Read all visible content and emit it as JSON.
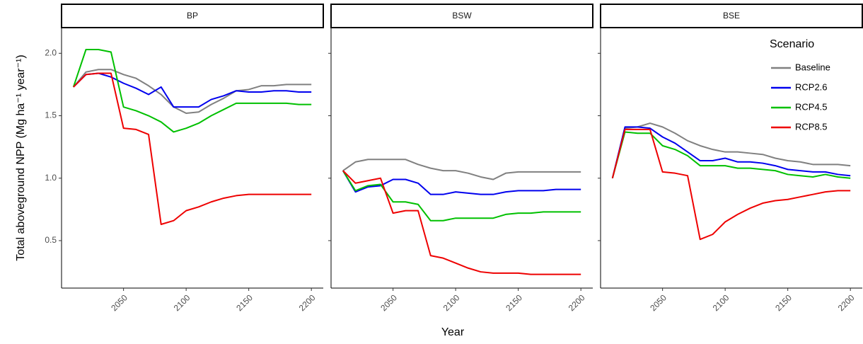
{
  "chart_data": {
    "type": "line",
    "ylabel": "Total aboveground NPP (Mg ha⁻¹ year⁻¹)",
    "xlabel": "Year",
    "legend_title": "Scenario",
    "legend_position": "top-right",
    "grid": false,
    "x": [
      2010,
      2020,
      2030,
      2040,
      2050,
      2060,
      2070,
      2080,
      2090,
      2100,
      2110,
      2120,
      2130,
      2140,
      2150,
      2160,
      2170,
      2180,
      2190,
      2200
    ],
    "xlim": [
      2000.5,
      2209.5
    ],
    "xticks": [
      2050,
      2100,
      2150,
      2200
    ],
    "ylim": [
      0.12,
      2.2
    ],
    "yticks": [
      0.5,
      {
        "value": 1,
        "label": "1.0"
      },
      1.5,
      {
        "value": 2,
        "label": "2.0"
      }
    ],
    "series": [
      {
        "name": "Baseline",
        "color": "#808080"
      },
      {
        "name": "RCP2.6",
        "color": "#0000ee"
      },
      {
        "name": "RCP4.5",
        "color": "#00c000"
      },
      {
        "name": "RCP8.5",
        "color": "#ee0000"
      }
    ],
    "facets": [
      {
        "title": "BP",
        "values": [
          [
            1.73,
            1.85,
            1.87,
            1.87,
            1.83,
            1.8,
            1.74,
            1.67,
            1.57,
            1.52,
            1.53,
            1.59,
            1.64,
            1.7,
            1.71,
            1.74,
            1.74,
            1.75,
            1.75,
            1.75
          ],
          [
            1.73,
            1.83,
            1.84,
            1.81,
            1.76,
            1.72,
            1.67,
            1.73,
            1.57,
            1.57,
            1.57,
            1.63,
            1.66,
            1.7,
            1.69,
            1.69,
            1.7,
            1.7,
            1.69,
            1.69
          ],
          [
            1.73,
            2.03,
            2.03,
            2.01,
            1.57,
            1.54,
            1.5,
            1.45,
            1.37,
            1.4,
            1.44,
            1.5,
            1.55,
            1.6,
            1.6,
            1.6,
            1.6,
            1.6,
            1.59,
            1.59
          ],
          [
            1.73,
            1.83,
            1.84,
            1.84,
            1.4,
            1.39,
            1.35,
            0.63,
            0.66,
            0.74,
            0.77,
            0.81,
            0.84,
            0.86,
            0.87,
            0.87,
            0.87,
            0.87,
            0.87,
            0.87
          ]
        ]
      },
      {
        "title": "BSW",
        "values": [
          [
            1.06,
            1.13,
            1.15,
            1.15,
            1.15,
            1.15,
            1.11,
            1.08,
            1.06,
            1.06,
            1.04,
            1.01,
            0.99,
            1.04,
            1.05,
            1.05,
            1.05,
            1.05,
            1.05,
            1.05
          ],
          [
            1.06,
            0.89,
            0.93,
            0.94,
            0.99,
            0.99,
            0.96,
            0.87,
            0.87,
            0.89,
            0.88,
            0.87,
            0.87,
            0.89,
            0.9,
            0.9,
            0.9,
            0.91,
            0.91,
            0.91
          ],
          [
            1.06,
            0.9,
            0.94,
            0.95,
            0.81,
            0.81,
            0.79,
            0.66,
            0.66,
            0.68,
            0.68,
            0.68,
            0.68,
            0.71,
            0.72,
            0.72,
            0.73,
            0.73,
            0.73,
            0.73
          ],
          [
            1.06,
            0.96,
            0.98,
            1.0,
            0.72,
            0.74,
            0.74,
            0.38,
            0.36,
            0.32,
            0.28,
            0.25,
            0.24,
            0.24,
            0.24,
            0.23,
            0.23,
            0.23,
            0.23,
            0.23
          ]
        ]
      },
      {
        "title": "BSE",
        "values": [
          [
            1.0,
            1.4,
            1.41,
            1.44,
            1.41,
            1.36,
            1.3,
            1.26,
            1.23,
            1.21,
            1.21,
            1.2,
            1.19,
            1.16,
            1.14,
            1.13,
            1.11,
            1.11,
            1.11,
            1.1
          ],
          [
            1.0,
            1.41,
            1.41,
            1.4,
            1.33,
            1.28,
            1.21,
            1.14,
            1.14,
            1.16,
            1.13,
            1.13,
            1.12,
            1.1,
            1.07,
            1.06,
            1.05,
            1.05,
            1.03,
            1.02
          ],
          [
            1.0,
            1.37,
            1.36,
            1.36,
            1.26,
            1.23,
            1.18,
            1.1,
            1.1,
            1.1,
            1.08,
            1.08,
            1.07,
            1.06,
            1.03,
            1.02,
            1.01,
            1.03,
            1.01,
            1.0
          ],
          [
            1.0,
            1.39,
            1.39,
            1.39,
            1.05,
            1.04,
            1.02,
            0.51,
            0.55,
            0.65,
            0.71,
            0.76,
            0.8,
            0.82,
            0.83,
            0.85,
            0.87,
            0.89,
            0.9,
            0.9
          ]
        ]
      }
    ]
  }
}
